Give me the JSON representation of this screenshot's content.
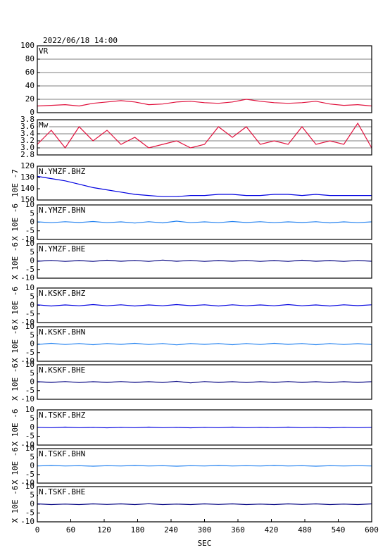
{
  "chart_data": [
    {
      "type": "line",
      "title": "2022/06/18 14:00",
      "label": "VR",
      "grid": true,
      "x": [
        0,
        25,
        50,
        75,
        100,
        125,
        150,
        175,
        200,
        225,
        250,
        275,
        300,
        325,
        350,
        375,
        400,
        425,
        450,
        475,
        500,
        525,
        550,
        575,
        600
      ],
      "series": [
        {
          "color": "#e0103c",
          "values": [
            10,
            11,
            12,
            10,
            14,
            16,
            18,
            16,
            12,
            13,
            16,
            17,
            15,
            14,
            16,
            20,
            17,
            15,
            14,
            15,
            17,
            13,
            11,
            12,
            10
          ]
        }
      ],
      "xlim": [
        0,
        600
      ],
      "ylim": [
        0,
        100
      ],
      "yticks": [
        0,
        20,
        40,
        60,
        80,
        100
      ]
    },
    {
      "type": "line",
      "label": "Mw",
      "grid": true,
      "x": [
        0,
        25,
        50,
        75,
        100,
        125,
        150,
        175,
        200,
        225,
        250,
        275,
        300,
        325,
        350,
        375,
        400,
        425,
        450,
        475,
        500,
        525,
        550,
        575,
        600
      ],
      "series": [
        {
          "color": "#e0103c",
          "values": [
            3.1,
            3.5,
            3.0,
            3.6,
            3.2,
            3.5,
            3.1,
            3.3,
            3.0,
            3.1,
            3.2,
            3.0,
            3.1,
            3.6,
            3.3,
            3.6,
            3.1,
            3.2,
            3.1,
            3.6,
            3.1,
            3.2,
            3.1,
            3.7,
            3.0
          ]
        }
      ],
      "xlim": [
        0,
        600
      ],
      "ylim": [
        2.8,
        3.8
      ],
      "yticks": [
        2.8,
        {
          "value": 3,
          "label": "3.0"
        },
        3.2,
        3.4,
        3.6,
        3.8
      ]
    },
    {
      "type": "line",
      "label": "N.YMZF.BHZ",
      "ylabel": "10E -7",
      "grid": false,
      "x": [
        0,
        25,
        50,
        75,
        100,
        125,
        150,
        175,
        200,
        225,
        250,
        275,
        300,
        325,
        350,
        375,
        400,
        425,
        450,
        475,
        500,
        525,
        550,
        575,
        600
      ],
      "series": [
        {
          "color": "#0000e0",
          "values": [
            129,
            131,
            133,
            136,
            139,
            141,
            143,
            145,
            146,
            147,
            147,
            146,
            146,
            145,
            145,
            146,
            146,
            145,
            145,
            146,
            145,
            146,
            146,
            146,
            146
          ]
        }
      ],
      "xlim": [
        0,
        600
      ],
      "ylim": [
        150,
        120
      ],
      "yticks": [
        120,
        130,
        140,
        150
      ]
    },
    {
      "type": "line",
      "label": "N.YMZF.BHN",
      "ylabel": "X 10E -6",
      "grid": false,
      "x": [
        0,
        25,
        50,
        75,
        100,
        125,
        150,
        175,
        200,
        225,
        250,
        275,
        300,
        325,
        350,
        375,
        400,
        425,
        450,
        475,
        500,
        525,
        550,
        575,
        600
      ],
      "series": [
        {
          "color": "#2080f0",
          "values": [
            0.2,
            -0.3,
            0.3,
            -0.2,
            0.4,
            -0.3,
            0.2,
            -0.5,
            0.3,
            -0.4,
            0.6,
            -0.3,
            0.2,
            -0.3,
            0.4,
            -0.2,
            0.3,
            -0.3,
            0.2,
            -0.2,
            0.3,
            -0.4,
            0.2,
            -0.3,
            0.2
          ]
        }
      ],
      "xlim": [
        0,
        600
      ],
      "ylim": [
        -10,
        10
      ],
      "yticks": [
        -10,
        -5,
        0,
        5,
        10
      ]
    },
    {
      "type": "line",
      "label": "N.YMZF.BHE",
      "ylabel": "X 10E -6",
      "grid": false,
      "x": [
        0,
        25,
        50,
        75,
        100,
        125,
        150,
        175,
        200,
        225,
        250,
        275,
        300,
        325,
        350,
        375,
        400,
        425,
        450,
        475,
        500,
        525,
        550,
        575,
        600
      ],
      "series": [
        {
          "color": "#000080",
          "values": [
            -0.2,
            0.3,
            -0.3,
            0.2,
            -0.3,
            0.4,
            -0.2,
            0.3,
            -0.3,
            0.5,
            -0.2,
            0.3,
            -0.3,
            0.2,
            -0.2,
            0.3,
            -0.3,
            0.2,
            -0.3,
            0.4,
            -0.2,
            0.2,
            -0.3,
            0.3,
            -0.2
          ]
        }
      ],
      "xlim": [
        0,
        600
      ],
      "ylim": [
        -10,
        10
      ],
      "yticks": [
        -10,
        -5,
        0,
        5,
        10
      ]
    },
    {
      "type": "line",
      "label": "N.KSKF.BHZ",
      "ylabel": "X 10E -6",
      "grid": false,
      "x": [
        0,
        25,
        50,
        75,
        100,
        125,
        150,
        175,
        200,
        225,
        250,
        275,
        300,
        325,
        350,
        375,
        400,
        425,
        450,
        475,
        500,
        525,
        550,
        575,
        600
      ],
      "series": [
        {
          "color": "#0000e0",
          "values": [
            0.3,
            -0.4,
            0.2,
            -0.3,
            0.4,
            -0.3,
            0.3,
            -0.4,
            0.2,
            -0.3,
            0.4,
            -0.2,
            0.3,
            -0.4,
            0.3,
            -0.3,
            0.2,
            -0.3,
            0.4,
            -0.3,
            0.2,
            -0.4,
            0.3,
            -0.2,
            0.3
          ]
        }
      ],
      "xlim": [
        0,
        600
      ],
      "ylim": [
        -10,
        10
      ],
      "yticks": [
        -10,
        -5,
        0,
        5,
        10
      ]
    },
    {
      "type": "line",
      "label": "N.KSKF.BHN",
      "ylabel": "X 10E -6",
      "grid": false,
      "x": [
        0,
        25,
        50,
        75,
        100,
        125,
        150,
        175,
        200,
        225,
        250,
        275,
        300,
        325,
        350,
        375,
        400,
        425,
        450,
        475,
        500,
        525,
        550,
        575,
        600
      ],
      "series": [
        {
          "color": "#2080f0",
          "values": [
            -0.3,
            0.4,
            -0.3,
            0.3,
            -0.4,
            0.3,
            -0.2,
            0.4,
            -0.3,
            0.3,
            -0.5,
            0.3,
            -0.2,
            0.3,
            -0.4,
            0.3,
            -0.3,
            0.4,
            -0.2,
            0.3,
            -0.4,
            0.3,
            -0.3,
            0.2,
            -0.3
          ]
        }
      ],
      "xlim": [
        0,
        600
      ],
      "ylim": [
        -10,
        10
      ],
      "yticks": [
        -10,
        -5,
        0,
        5,
        10
      ]
    },
    {
      "type": "line",
      "label": "N.KSKF.BHE",
      "ylabel": "X 10E -6",
      "grid": false,
      "x": [
        0,
        25,
        50,
        75,
        100,
        125,
        150,
        175,
        200,
        225,
        250,
        275,
        300,
        325,
        350,
        375,
        400,
        425,
        450,
        475,
        500,
        525,
        550,
        575,
        600
      ],
      "series": [
        {
          "color": "#000080",
          "values": [
            0.2,
            -0.2,
            0.3,
            -0.3,
            0.2,
            -0.2,
            0.3,
            -0.2,
            0.2,
            -0.3,
            0.4,
            -0.5,
            0.3,
            -0.2,
            0.2,
            -0.3,
            0.2,
            -0.2,
            0.3,
            -0.2,
            0.2,
            -0.3,
            0.2,
            -0.2,
            0.2
          ]
        }
      ],
      "xlim": [
        0,
        600
      ],
      "ylim": [
        -10,
        10
      ],
      "yticks": [
        -10,
        -5,
        0,
        5,
        10
      ]
    },
    {
      "type": "line",
      "label": "N.TSKF.BHZ",
      "ylabel": "X 10E -6",
      "grid": false,
      "x": [
        0,
        25,
        50,
        75,
        100,
        125,
        150,
        175,
        200,
        225,
        250,
        275,
        300,
        325,
        350,
        375,
        400,
        425,
        450,
        475,
        500,
        525,
        550,
        575,
        600
      ],
      "series": [
        {
          "color": "#0000e0",
          "values": [
            0.1,
            -0.1,
            0.2,
            -0.1,
            0.1,
            -0.2,
            0.1,
            -0.1,
            0.2,
            -0.1,
            0.1,
            -0.2,
            0.1,
            -0.1,
            0.2,
            -0.1,
            0.1,
            -0.1,
            0.2,
            -0.1,
            0.1,
            -0.2,
            0.1,
            -0.1,
            0.1
          ]
        }
      ],
      "xlim": [
        0,
        600
      ],
      "ylim": [
        -10,
        10
      ],
      "yticks": [
        -10,
        -5,
        0,
        5,
        10
      ]
    },
    {
      "type": "line",
      "label": "N.TSKF.BHN",
      "ylabel": "X 10E -6",
      "grid": false,
      "x": [
        0,
        25,
        50,
        75,
        100,
        125,
        150,
        175,
        200,
        225,
        250,
        275,
        300,
        325,
        350,
        375,
        400,
        425,
        450,
        475,
        500,
        525,
        550,
        575,
        600
      ],
      "series": [
        {
          "color": "#2080f0",
          "values": [
            -0.1,
            0.2,
            -0.1,
            0.1,
            -0.2,
            0.1,
            -0.1,
            0.2,
            -0.1,
            0.1,
            -0.2,
            0.1,
            -0.1,
            0.2,
            -0.1,
            0.1,
            -0.1,
            0.2,
            -0.1,
            0.1,
            -0.2,
            0.1,
            -0.1,
            0.1,
            -0.1
          ]
        }
      ],
      "xlim": [
        0,
        600
      ],
      "ylim": [
        -10,
        10
      ],
      "yticks": [
        -10,
        -5,
        0,
        5,
        10
      ]
    },
    {
      "type": "line",
      "label": "N.TSKF.BHE",
      "ylabel": "X 10E -6",
      "grid": false,
      "xlabel": "SEC",
      "x": [
        0,
        25,
        50,
        75,
        100,
        125,
        150,
        175,
        200,
        225,
        250,
        275,
        300,
        325,
        350,
        375,
        400,
        425,
        450,
        475,
        500,
        525,
        550,
        575,
        600
      ],
      "series": [
        {
          "color": "#000080",
          "values": [
            0.2,
            -0.2,
            0.1,
            -0.2,
            0.2,
            -0.1,
            0.2,
            -0.2,
            0.3,
            -0.2,
            0.1,
            -0.2,
            0.2,
            -0.1,
            0.2,
            -0.2,
            0.1,
            -0.2,
            0.2,
            -0.1,
            0.2,
            -0.2,
            0.1,
            -0.2,
            0.2
          ]
        }
      ],
      "xlim": [
        0,
        600
      ],
      "ylim": [
        -10,
        10
      ],
      "yticks": [
        -10,
        -5,
        0,
        5,
        10
      ],
      "xticks": [
        0,
        60,
        120,
        180,
        240,
        300,
        360,
        420,
        480,
        540,
        600
      ]
    }
  ]
}
